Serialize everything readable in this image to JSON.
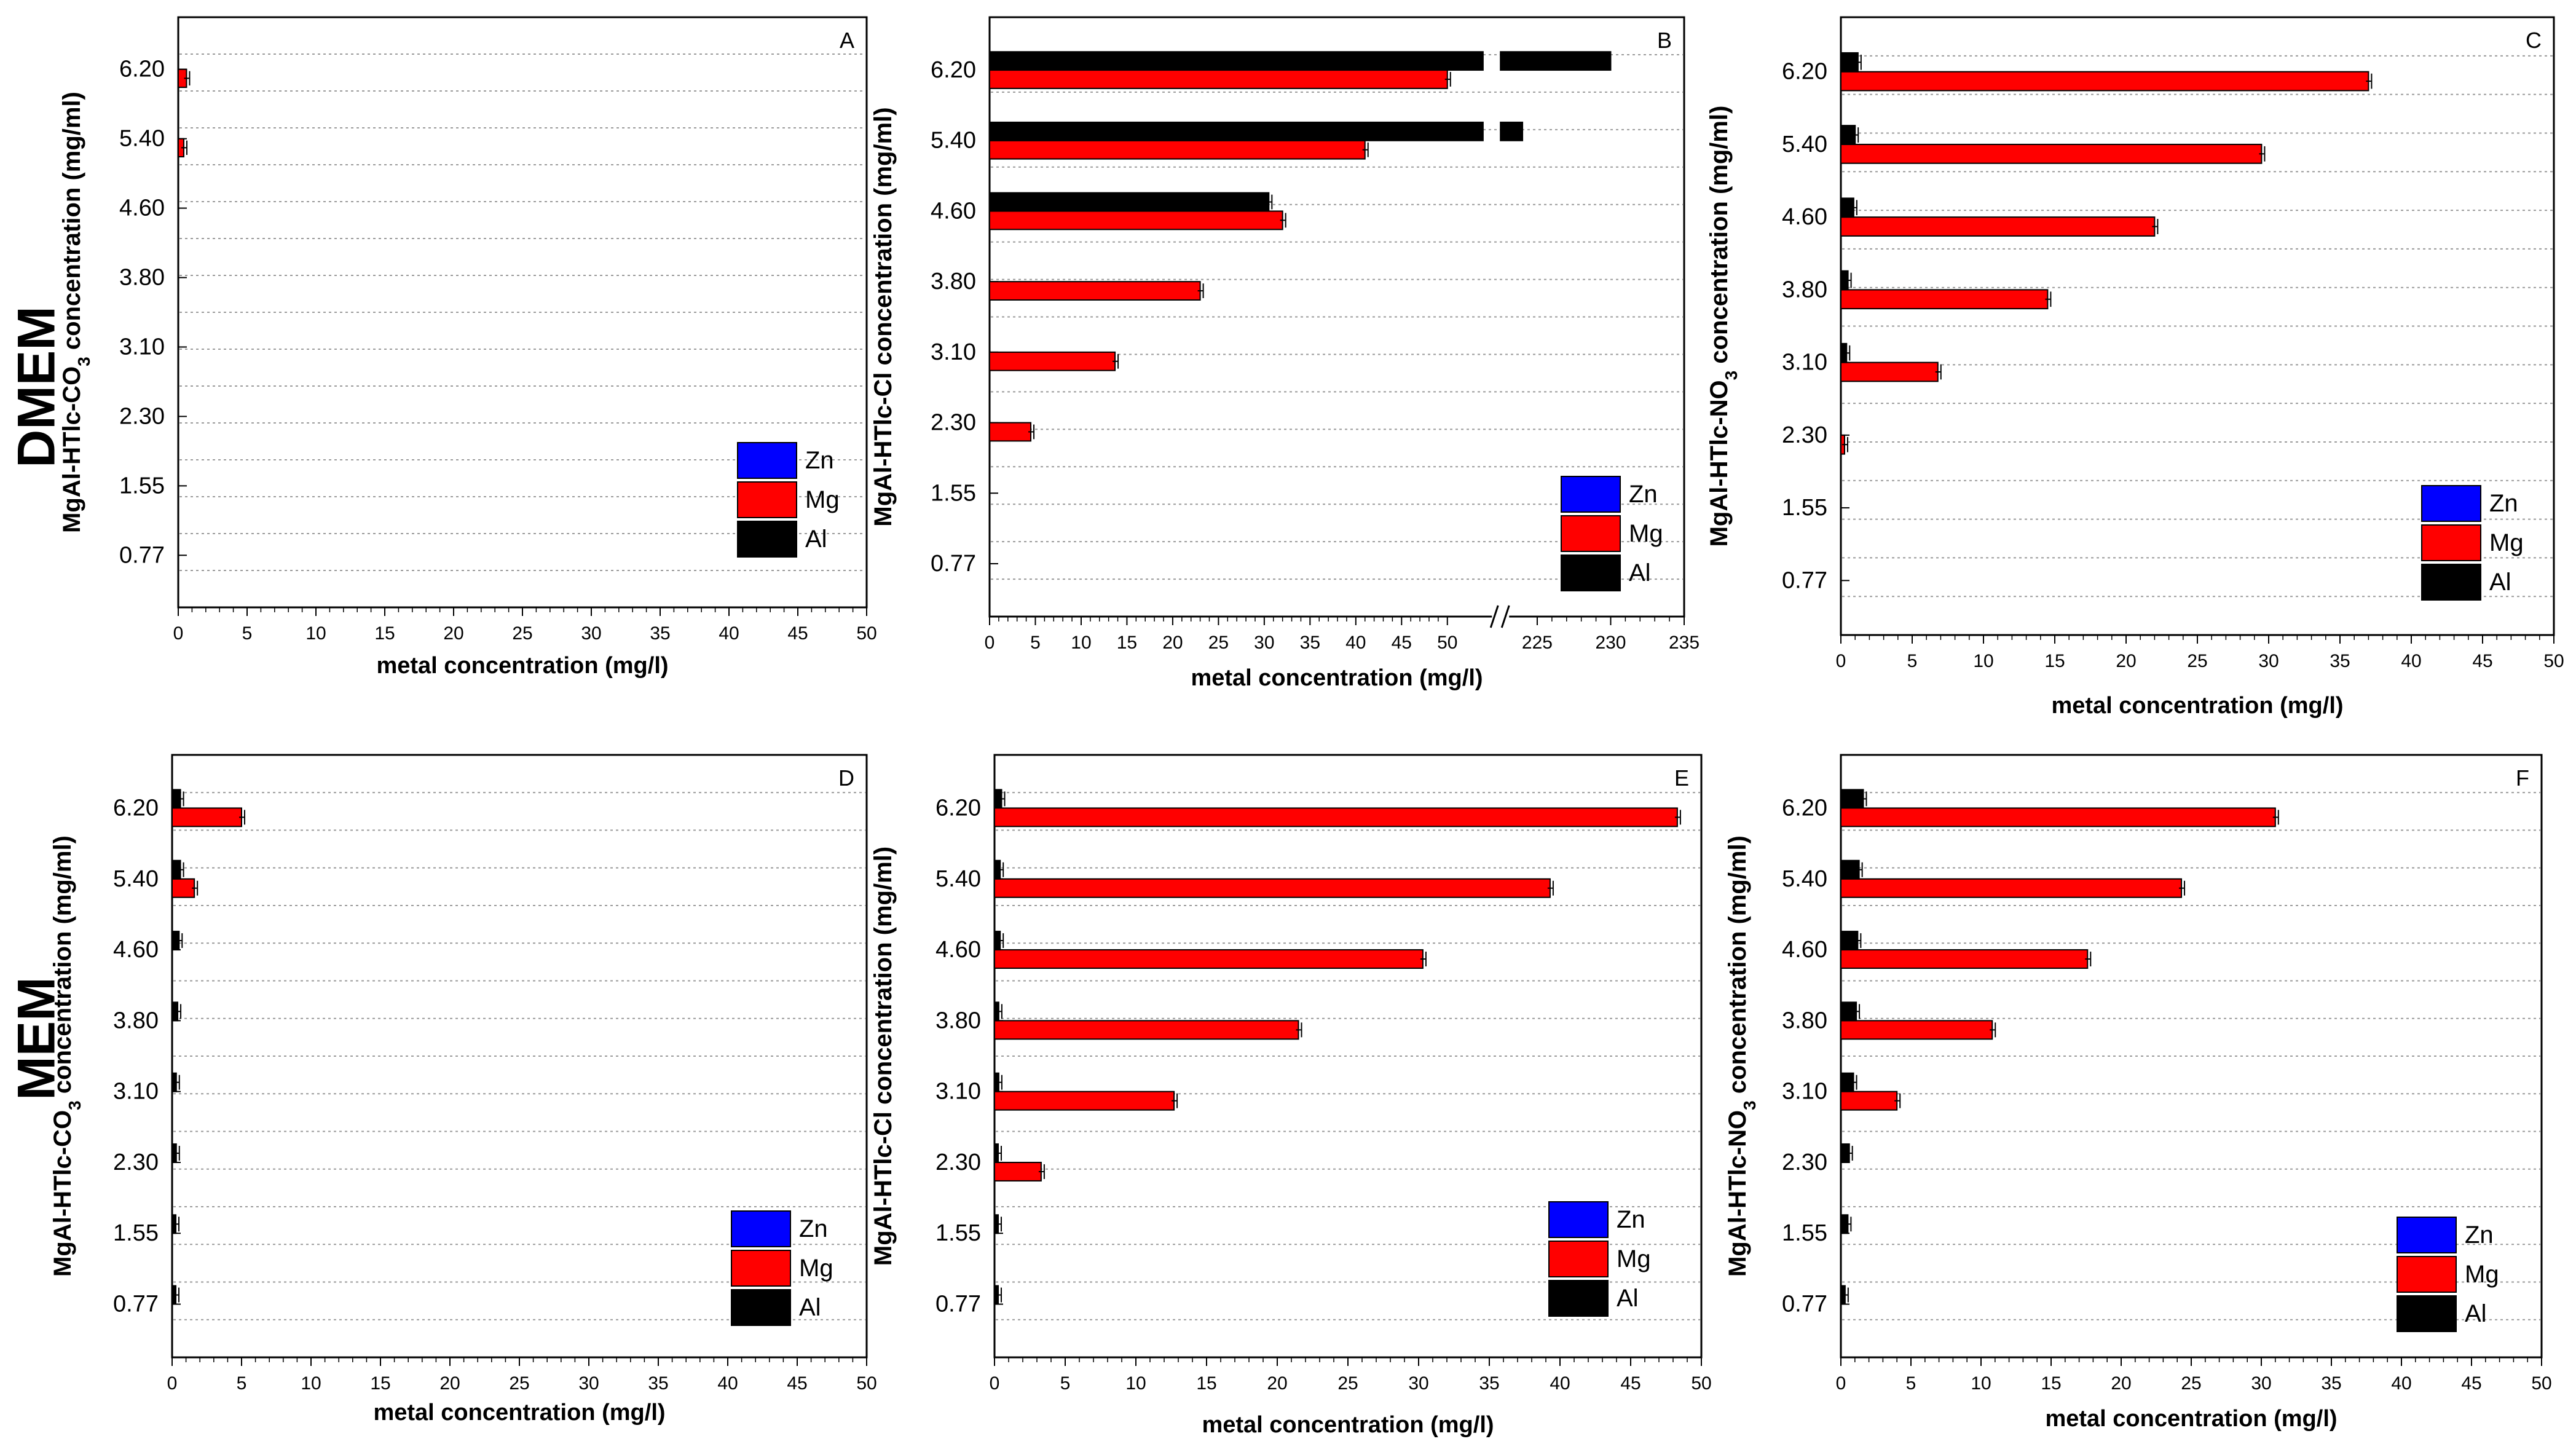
{
  "row_labels": {
    "top": "DMEM",
    "bottom": "MEM"
  },
  "series_colors": {
    "Zn": "#0000ff",
    "Mg": "#ff0000",
    "Al": "#000000"
  },
  "legend_entries": [
    "Zn",
    "Mg",
    "Al"
  ],
  "chart_data": [
    {
      "id": "A",
      "type": "bar",
      "orientation": "horizontal",
      "panel_letter": "A",
      "categories": [
        "0.77",
        "1.55",
        "2.30",
        "3.10",
        "3.80",
        "4.60",
        "5.40",
        "6.20"
      ],
      "ylabel": "MgAl-HTlc-CO3 concentration (mg/ml)",
      "ylabel_base": "MgAl-HTlc-CO",
      "ylabel_sub": "3",
      "ylabel_tail": " concentration (mg/ml)",
      "xlabel": "metal concentration (mg/l)",
      "xlim": [
        0,
        50
      ],
      "x_ticks": [
        "0",
        "5",
        "10",
        "15",
        "20",
        "25",
        "30",
        "35",
        "40",
        "45",
        "50"
      ],
      "series": [
        {
          "name": "Zn",
          "values": [
            0,
            0,
            0,
            0,
            0,
            0,
            0,
            0
          ]
        },
        {
          "name": "Mg",
          "values": [
            0,
            0,
            0,
            0,
            0,
            0,
            0.4,
            0.6
          ]
        },
        {
          "name": "Al",
          "values": [
            0,
            0,
            0,
            0,
            0,
            0,
            0,
            0
          ]
        }
      ]
    },
    {
      "id": "B",
      "type": "bar",
      "orientation": "horizontal",
      "panel_letter": "B",
      "categories": [
        "0.77",
        "1.55",
        "2.30",
        "3.10",
        "3.80",
        "4.60",
        "5.40",
        "6.20"
      ],
      "ylabel": "MgAl-HTlc-Cl concentration (mg/ml)",
      "ylabel_base": "MgAl-HTlc-Cl concentration (mg/ml)",
      "ylabel_sub": "",
      "ylabel_tail": "",
      "xlabel": "metal concentration (mg/l)",
      "xlim": [
        0,
        235
      ],
      "axis_break": [
        55,
        222
      ],
      "x_ticks": [
        "0",
        "5",
        "10",
        "15",
        "20",
        "25",
        "30",
        "35",
        "40",
        "45",
        "50",
        "225",
        "230",
        "235"
      ],
      "series": [
        {
          "name": "Zn",
          "values": [
            0,
            0,
            0,
            0,
            0,
            0,
            0,
            0
          ]
        },
        {
          "name": "Mg",
          "values": [
            0,
            0,
            4.5,
            13.7,
            23.0,
            32.0,
            41.0,
            50.0
          ]
        },
        {
          "name": "Al",
          "values": [
            0,
            0,
            0,
            0,
            0,
            30.5,
            224.0,
            230.0
          ]
        }
      ]
    },
    {
      "id": "C",
      "type": "bar",
      "orientation": "horizontal",
      "panel_letter": "C",
      "categories": [
        "0.77",
        "1.55",
        "2.30",
        "3.10",
        "3.80",
        "4.60",
        "5.40",
        "6.20"
      ],
      "ylabel": "MgAl-HTlc-NO3 concentration (mg/ml)",
      "ylabel_base": "MgAl-HTlc-NO",
      "ylabel_sub": "3",
      "ylabel_tail": " concentration (mg/ml)",
      "xlabel": "metal concentration (mg/l)",
      "xlim": [
        0,
        50
      ],
      "x_ticks": [
        "0",
        "5",
        "10",
        "15",
        "20",
        "25",
        "30",
        "35",
        "40",
        "45",
        "50"
      ],
      "series": [
        {
          "name": "Zn",
          "values": [
            0,
            0,
            0,
            0,
            0,
            0,
            0,
            0
          ]
        },
        {
          "name": "Mg",
          "values": [
            0,
            0,
            0.1,
            6.8,
            14.5,
            22.0,
            29.5,
            37.0
          ]
        },
        {
          "name": "Al",
          "values": [
            0,
            0,
            0,
            0.4,
            0.5,
            0.9,
            1.0,
            1.2
          ]
        }
      ]
    },
    {
      "id": "D",
      "type": "bar",
      "orientation": "horizontal",
      "panel_letter": "D",
      "categories": [
        "0.77",
        "1.55",
        "2.30",
        "3.10",
        "3.80",
        "4.60",
        "5.40",
        "6.20"
      ],
      "ylabel": "MgAl-HTlc-CO3 concentration (mg/ml)",
      "ylabel_base": "MgAl-HTlc-CO",
      "ylabel_sub": "3",
      "ylabel_tail": " concentration (mg/ml)",
      "xlabel": "metal concentration (mg/l)",
      "xlim": [
        0,
        50
      ],
      "x_ticks": [
        "0",
        "5",
        "10",
        "15",
        "20",
        "25",
        "30",
        "35",
        "40",
        "45",
        "50"
      ],
      "series": [
        {
          "name": "Zn",
          "values": [
            0,
            0,
            0,
            0,
            0,
            0,
            0,
            0
          ]
        },
        {
          "name": "Mg",
          "values": [
            0,
            0,
            0,
            0,
            0,
            0,
            1.6,
            5.0
          ]
        },
        {
          "name": "Al",
          "values": [
            0.1,
            0.2,
            0.3,
            0.3,
            0.4,
            0.5,
            0.6,
            0.6
          ]
        }
      ]
    },
    {
      "id": "E",
      "type": "bar",
      "orientation": "horizontal",
      "panel_letter": "E",
      "categories": [
        "0.77",
        "1.55",
        "2.30",
        "3.10",
        "3.80",
        "4.60",
        "5.40",
        "6.20"
      ],
      "ylabel": "MgAl-HTlc-Cl concentration (mg/ml)",
      "ylabel_base": "MgAl-HTlc-Cl concentration (mg/ml)",
      "ylabel_sub": "",
      "ylabel_tail": "",
      "xlabel": "metal concentration (mg/l)",
      "xlim": [
        0,
        50
      ],
      "x_ticks": [
        "0",
        "5",
        "10",
        "15",
        "20",
        "25",
        "30",
        "35",
        "40",
        "45",
        "50"
      ],
      "series": [
        {
          "name": "Zn",
          "values": [
            0,
            0,
            0,
            0,
            0,
            0,
            0,
            0
          ]
        },
        {
          "name": "Mg",
          "values": [
            0,
            0,
            3.3,
            12.7,
            21.5,
            30.3,
            39.3,
            48.3
          ]
        },
        {
          "name": "Al",
          "values": [
            0.1,
            0.1,
            0.2,
            0.3,
            0.3,
            0.4,
            0.4,
            0.5
          ]
        }
      ]
    },
    {
      "id": "F",
      "type": "bar",
      "orientation": "horizontal",
      "panel_letter": "F",
      "categories": [
        "0.77",
        "1.55",
        "2.30",
        "3.10",
        "3.80",
        "4.60",
        "5.40",
        "6.20"
      ],
      "ylabel": "MgAl-HTlc-NO3 concentration (mg/ml)",
      "ylabel_base": "MgAl-HTlc-NO",
      "ylabel_sub": "3",
      "ylabel_tail": " concentration (mg/ml)",
      "xlabel": "metal concentration (mg/l)",
      "xlim": [
        0,
        50
      ],
      "x_ticks": [
        "0",
        "5",
        "10",
        "15",
        "20",
        "25",
        "30",
        "35",
        "40",
        "45",
        "50"
      ],
      "series": [
        {
          "name": "Zn",
          "values": [
            0,
            0,
            0,
            0,
            0,
            0,
            0,
            0
          ]
        },
        {
          "name": "Mg",
          "values": [
            0,
            0,
            0,
            4.0,
            10.8,
            17.6,
            24.3,
            31.0
          ]
        },
        {
          "name": "Al",
          "values": [
            0.3,
            0.5,
            0.6,
            0.9,
            1.1,
            1.2,
            1.3,
            1.6
          ]
        }
      ]
    }
  ]
}
